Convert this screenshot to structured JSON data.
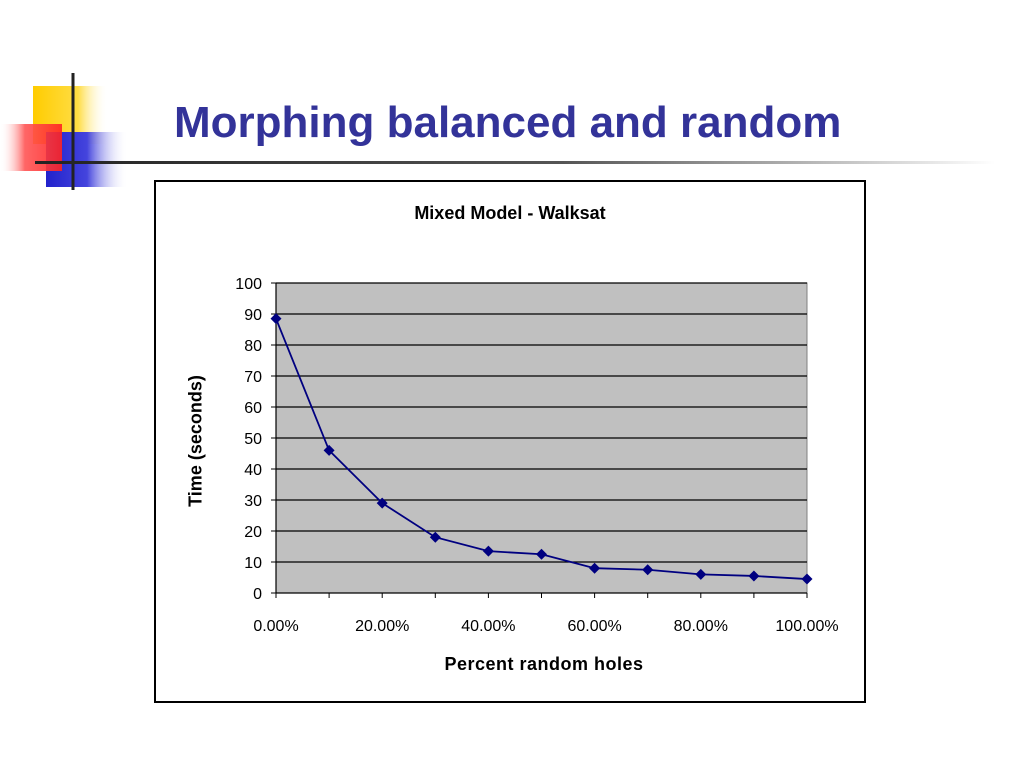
{
  "slide": {
    "title": "Morphing balanced and random"
  },
  "colors": {
    "title": "#333399",
    "plot_bg": "#c0c0c0",
    "series": "#000080",
    "logo_yellow": "#ffcc00",
    "logo_red": "#ff3333",
    "logo_blue": "#3333cc"
  },
  "chart_data": {
    "type": "line",
    "title": "Mixed Model - Walksat",
    "xlabel": "Percent random holes",
    "ylabel": "Time (seconds)",
    "x": [
      0,
      0.1,
      0.2,
      0.3,
      0.4,
      0.5,
      0.6,
      0.7,
      0.8,
      0.9,
      1.0
    ],
    "series": [
      {
        "values": [
          88.5,
          46,
          29,
          18,
          13.5,
          12.5,
          8,
          7.5,
          6,
          5.5,
          4.5
        ]
      }
    ],
    "xlim": [
      0,
      1.0
    ],
    "ylim": [
      0,
      100
    ],
    "x_ticks": [
      "0.00%",
      "20.00%",
      "40.00%",
      "60.00%",
      "80.00%",
      "100.00%"
    ],
    "y_ticks": [
      "0",
      "10",
      "20",
      "30",
      "40",
      "50",
      "60",
      "70",
      "80",
      "90",
      "100"
    ],
    "grid": true,
    "legend": "none",
    "marker": "diamond"
  }
}
